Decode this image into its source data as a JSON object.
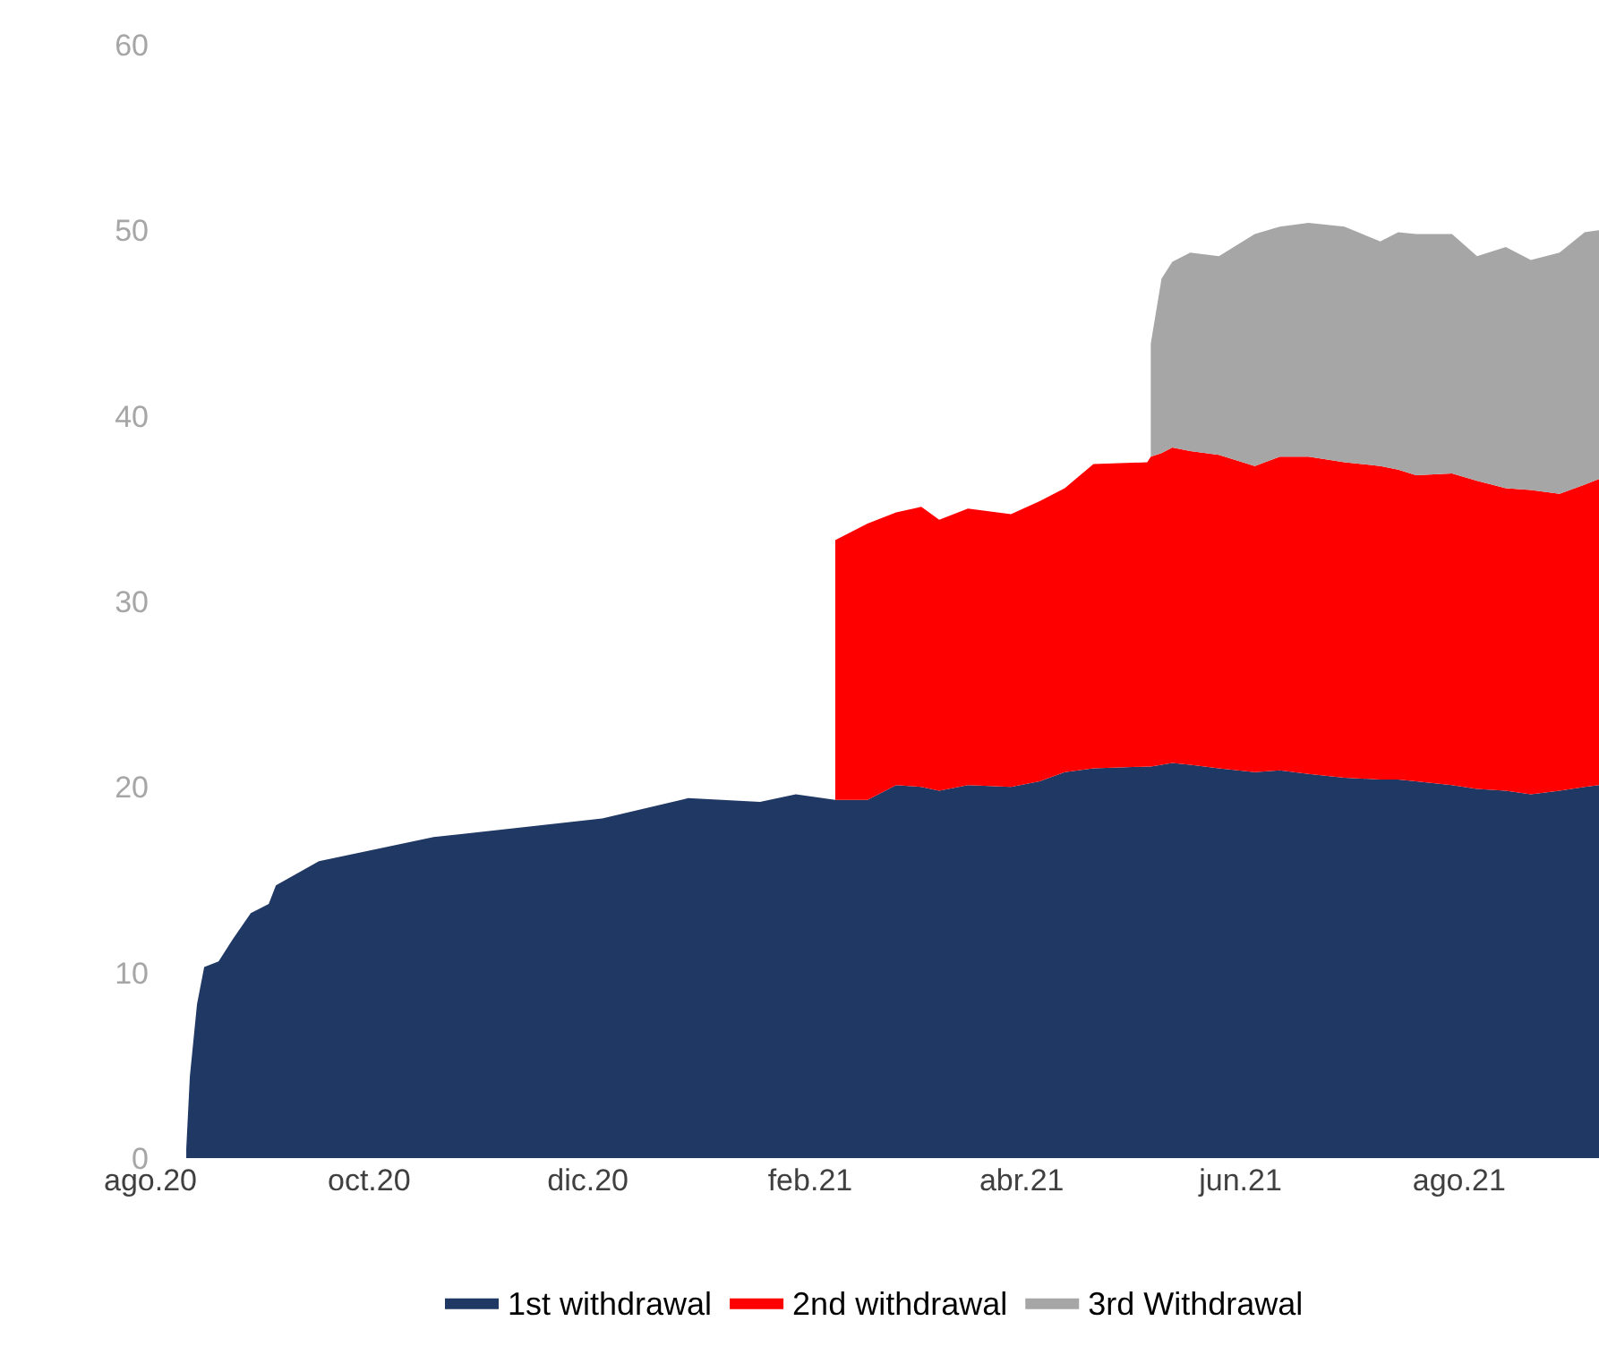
{
  "chart_data": {
    "type": "area",
    "stacked": true,
    "legend": "bottom",
    "x": [
      "2020-08-11",
      "2020-08-12",
      "2020-08-14",
      "2020-08-16",
      "2020-08-20",
      "2020-08-24",
      "2020-08-29",
      "2020-09-03",
      "2020-09-05",
      "2020-09-17",
      "2020-10-19",
      "2020-12-05",
      "2020-12-29",
      "2021-01-18",
      "2021-01-28",
      "2021-02-08",
      "2021-02-17",
      "2021-02-25",
      "2021-03-04",
      "2021-03-09",
      "2021-03-17",
      "2021-03-29",
      "2021-04-06",
      "2021-04-13",
      "2021-04-21",
      "2021-05-06",
      "2021-05-07",
      "2021-05-10",
      "2021-05-13",
      "2021-05-18",
      "2021-05-26",
      "2021-06-05",
      "2021-06-12",
      "2021-06-20",
      "2021-06-30",
      "2021-07-10",
      "2021-07-15",
      "2021-07-20",
      "2021-07-30",
      "2021-08-06",
      "2021-08-14",
      "2021-08-21",
      "2021-08-29",
      "2021-09-05",
      "2021-09-09"
    ],
    "series": [
      {
        "name": "1st withdrawal",
        "color": "#203864",
        "values": [
          0.5,
          4.4,
          8.3,
          10.3,
          10.6,
          11.8,
          13.2,
          13.7,
          14.7,
          16.0,
          17.3,
          18.3,
          19.4,
          19.2,
          19.6,
          19.3,
          19.3,
          20.1,
          20.0,
          19.8,
          20.1,
          20.0,
          20.3,
          20.8,
          21.0,
          21.1,
          21.1,
          21.2,
          21.3,
          21.2,
          21.0,
          20.8,
          20.9,
          20.7,
          20.5,
          20.4,
          20.4,
          20.3,
          20.1,
          19.9,
          19.8,
          19.6,
          19.8,
          20.0,
          20.1
        ]
      },
      {
        "name": "2nd withdrawal",
        "color": "#ff0000",
        "values": [
          null,
          null,
          null,
          null,
          null,
          null,
          null,
          null,
          null,
          null,
          null,
          null,
          null,
          null,
          null,
          14.0,
          14.9,
          14.7,
          15.1,
          14.6,
          14.9,
          14.7,
          15.1,
          15.3,
          16.4,
          16.4,
          16.7,
          16.8,
          17.0,
          16.9,
          16.9,
          16.5,
          16.9,
          17.1,
          17.0,
          16.9,
          16.7,
          16.5,
          16.8,
          16.6,
          16.3,
          16.4,
          16.0,
          16.3,
          16.5
        ]
      },
      {
        "name": "3rd Withdrawal",
        "color": "#a6a6a6",
        "values": [
          null,
          null,
          null,
          null,
          null,
          null,
          null,
          null,
          null,
          null,
          null,
          null,
          null,
          null,
          null,
          null,
          null,
          null,
          null,
          null,
          null,
          null,
          null,
          null,
          null,
          null,
          6.1,
          9.4,
          10.0,
          10.7,
          10.7,
          12.5,
          12.4,
          12.6,
          12.7,
          12.1,
          12.8,
          13.0,
          12.9,
          12.1,
          13.0,
          12.4,
          13.0,
          13.6,
          13.4
        ]
      }
    ],
    "xlim": [
      "2020-08-01",
      "2021-09-09"
    ],
    "xticks": [
      {
        "value": "2020-08-01",
        "label": "ago.20"
      },
      {
        "value": "2020-10-01",
        "label": "oct.20"
      },
      {
        "value": "2020-12-01",
        "label": "dic.20"
      },
      {
        "value": "2021-02-01",
        "label": "feb.21"
      },
      {
        "value": "2021-04-01",
        "label": "abr.21"
      },
      {
        "value": "2021-06-01",
        "label": "jun.21"
      },
      {
        "value": "2021-08-01",
        "label": "ago.21"
      }
    ],
    "ylim": [
      0,
      60
    ],
    "yticks": [
      0,
      10,
      20,
      30,
      40,
      50,
      60
    ]
  }
}
